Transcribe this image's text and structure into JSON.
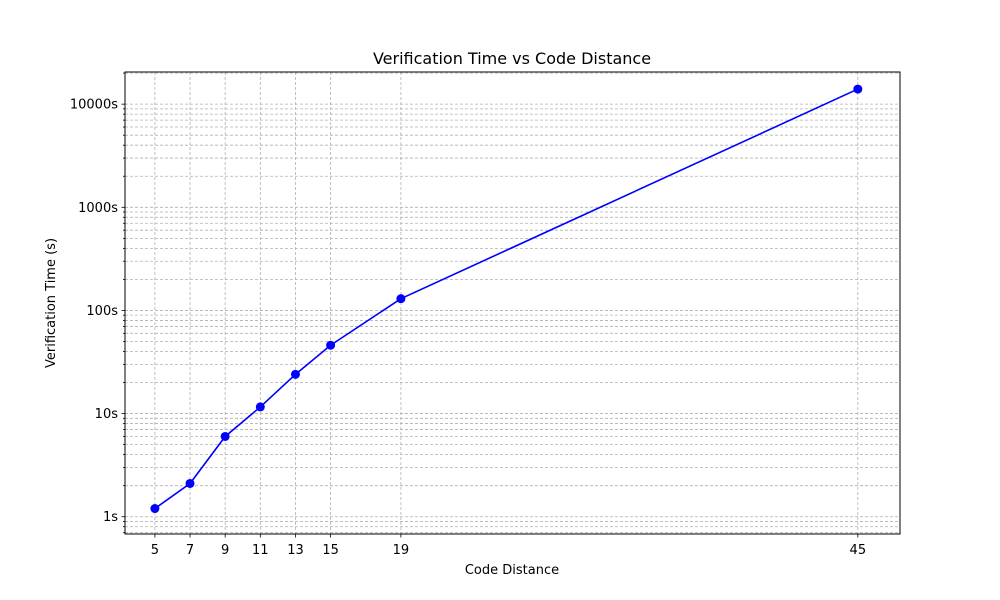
{
  "chart_data": {
    "type": "line",
    "title": "Verification Time vs Code Distance",
    "xlabel": "Code Distance",
    "ylabel": "Verification Time (s)",
    "x_ticks": [
      5,
      7,
      9,
      11,
      13,
      15,
      19,
      45
    ],
    "y_ticks": [
      {
        "value": 1,
        "label": "1s"
      },
      {
        "value": 10,
        "label": "10s"
      },
      {
        "value": 100,
        "label": "100s"
      },
      {
        "value": 1000,
        "label": "1000s"
      },
      {
        "value": 10000,
        "label": "10000s"
      }
    ],
    "y_scale": "log",
    "xlim": [
      3.3,
      47.4
    ],
    "ylim": [
      0.68,
      20500
    ],
    "grid": "both, major and minor",
    "series": [
      {
        "color": "#0000ff",
        "marker": "circle",
        "x": [
          5,
          7,
          9,
          11,
          13,
          15,
          19,
          45
        ],
        "y": [
          1.2,
          2.1,
          6.0,
          11.6,
          24,
          46,
          130,
          14000
        ]
      }
    ]
  }
}
